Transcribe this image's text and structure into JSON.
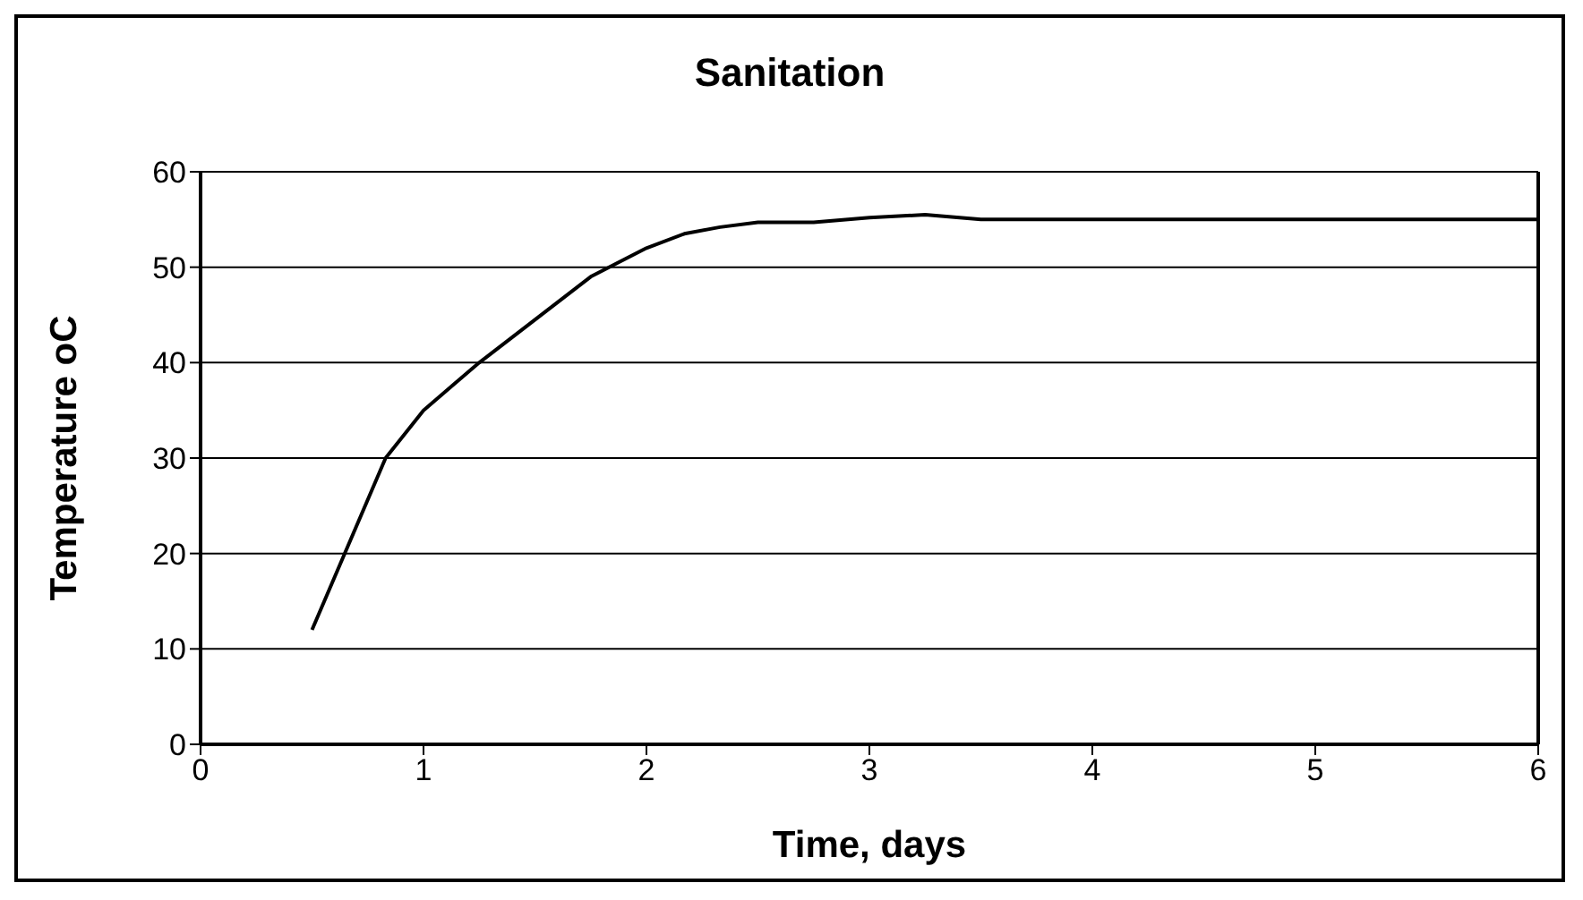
{
  "chart_data": {
    "type": "line",
    "title": "Sanitation",
    "xlabel": "Time, days",
    "ylabel": "Temperature oC",
    "x": [
      0.5,
      0.83,
      1,
      1.25,
      1.5,
      1.75,
      2,
      2.17,
      2.33,
      2.5,
      2.75,
      3,
      3.25,
      3.5,
      4,
      5,
      6
    ],
    "series": [
      {
        "color": "#000000",
        "values": [
          12,
          30,
          35,
          40,
          44.5,
          49,
          52,
          53.5,
          54.2,
          54.7,
          54.7,
          55.2,
          55.5,
          55,
          55,
          55,
          55
        ]
      }
    ],
    "xlim": [
      0,
      6
    ],
    "xticks": [
      0,
      1,
      2,
      3,
      4,
      5,
      6
    ],
    "ylim": [
      0,
      60
    ],
    "yticks": [
      0,
      10,
      20,
      30,
      40,
      50,
      60
    ],
    "grid": "y",
    "legend": false,
    "marker": "none",
    "line_style": "solid"
  }
}
